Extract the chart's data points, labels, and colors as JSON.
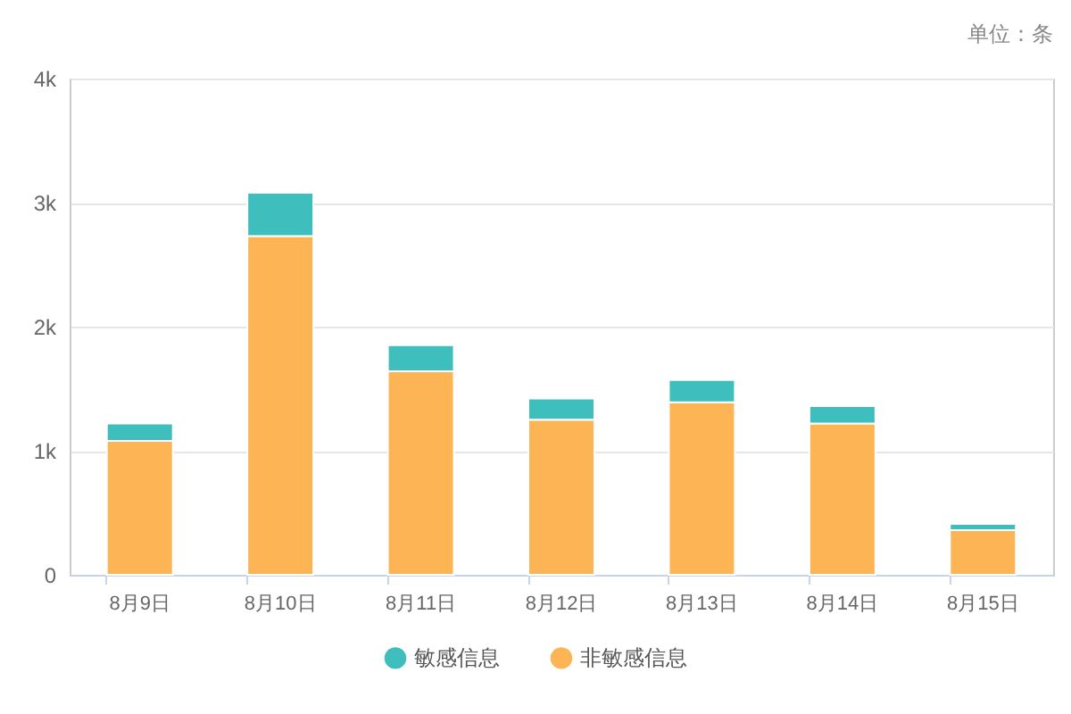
{
  "chart_data": {
    "type": "bar",
    "stacked": true,
    "categories": [
      "8月9日",
      "8月10日",
      "8月11日",
      "8月12日",
      "8月13日",
      "8月14日",
      "8月15日"
    ],
    "series": [
      {
        "name": "非敏感信息",
        "color": "#fdb455",
        "values": [
          1080,
          2730,
          1640,
          1250,
          1390,
          1220,
          360
        ]
      },
      {
        "name": "敏感信息",
        "color": "#3ebfbe",
        "values": [
          140,
          350,
          210,
          170,
          180,
          140,
          50
        ]
      }
    ],
    "ylim": [
      0,
      4000
    ],
    "yticks": [
      0,
      {
        "value": 1000,
        "label": "1k"
      },
      {
        "value": 2000,
        "label": "2k"
      },
      {
        "value": 3000,
        "label": "3k"
      },
      {
        "value": 4000,
        "label": "4k"
      }
    ],
    "grid": "y",
    "legend": "bottom",
    "annotations": [
      "单位：条"
    ]
  }
}
